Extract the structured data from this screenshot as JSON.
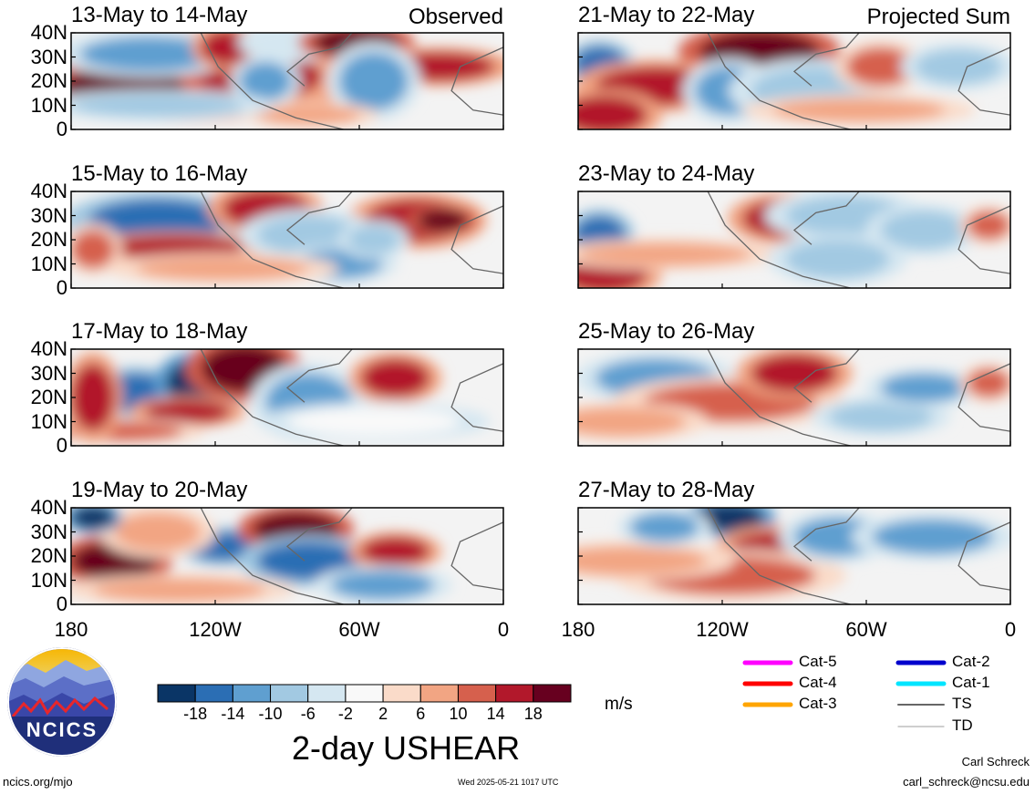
{
  "chart_data": {
    "type": "heatmap",
    "variable_title": "2-day USHEAR",
    "units": "m/s",
    "column_tags": [
      "Observed",
      "Projected Sum"
    ],
    "panels": [
      {
        "title": "13-May to 14-May",
        "column": "Observed"
      },
      {
        "title": "15-May to 16-May",
        "column": "Observed"
      },
      {
        "title": "17-May to 18-May",
        "column": "Observed"
      },
      {
        "title": "19-May to 20-May",
        "column": "Observed"
      },
      {
        "title": "21-May to 22-May",
        "column": "Projected Sum"
      },
      {
        "title": "23-May to 24-May",
        "column": "Projected Sum"
      },
      {
        "title": "25-May to 26-May",
        "column": "Projected Sum"
      },
      {
        "title": "27-May to 28-May",
        "column": "Projected Sum"
      }
    ],
    "lat_ticks": [
      "40N",
      "30N",
      "20N",
      "10N",
      "0"
    ],
    "lon_ticks": [
      "180",
      "120W",
      "60W",
      "0"
    ],
    "colorbar": {
      "levels": [
        "-18",
        "-14",
        "-10",
        "-6",
        "-2",
        "2",
        "6",
        "10",
        "14",
        "18"
      ],
      "colors": [
        "#0a3566",
        "#2b6eb4",
        "#5f9fd0",
        "#a2c9e2",
        "#d5e7f1",
        "#f9f9f9",
        "#fadbc9",
        "#f2a583",
        "#d6604d",
        "#b2182b",
        "#67001f"
      ]
    }
  },
  "storm_legend": [
    {
      "label": "Cat-5",
      "color": "#ff00ff"
    },
    {
      "label": "Cat-4",
      "color": "#ff0000"
    },
    {
      "label": "Cat-3",
      "color": "#ffa500"
    },
    {
      "label": "Cat-2",
      "color": "#0000cd"
    },
    {
      "label": "Cat-1",
      "color": "#00e5ff"
    },
    {
      "label": "TS",
      "color": "#666666"
    },
    {
      "label": "TD",
      "color": "#b0b0b0"
    }
  ],
  "logo_text": "NCICS",
  "footer": {
    "site": "ncics.org/mjo",
    "timestamp": "Wed 2025-05-21 1017 UTC",
    "author": "Carl Schreck",
    "email": "carl_schreck@ncsu.edu"
  }
}
